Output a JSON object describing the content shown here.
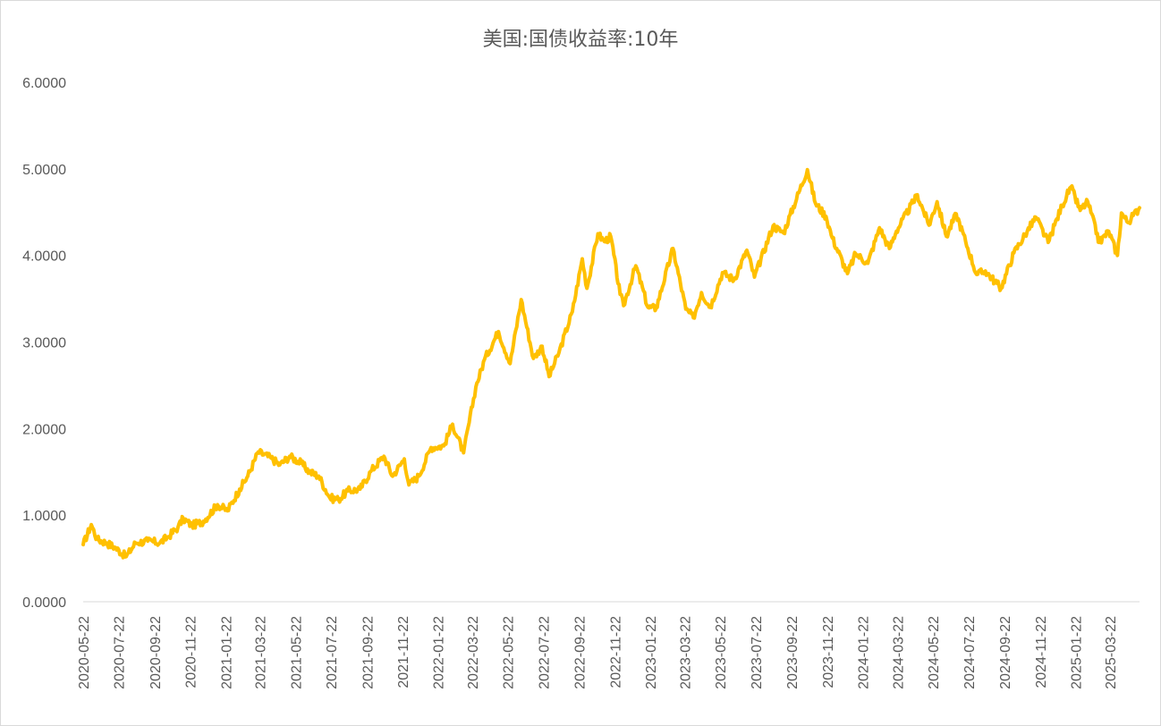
{
  "chart_data": {
    "type": "line",
    "title": "美国:国债收益率:10年",
    "xlabel": "",
    "ylabel": "",
    "ylim": [
      0,
      6
    ],
    "x_range": [
      "2020-05-22",
      "2025-05-12"
    ],
    "y_tick_labels": [
      "0.0000",
      "1.0000",
      "2.0000",
      "3.0000",
      "4.0000",
      "5.0000",
      "6.0000"
    ],
    "x_tick_labels": [
      "2020-05-22",
      "2020-07-22",
      "2020-09-22",
      "2020-11-22",
      "2021-01-22",
      "2021-03-22",
      "2021-05-22",
      "2021-07-22",
      "2021-09-22",
      "2021-11-22",
      "2022-01-22",
      "2022-03-22",
      "2022-05-22",
      "2022-07-22",
      "2022-09-22",
      "2022-11-22",
      "2023-01-22",
      "2023-03-22",
      "2023-05-22",
      "2023-07-22",
      "2023-09-22",
      "2023-11-22",
      "2024-01-22",
      "2024-03-22",
      "2024-05-22",
      "2024-07-22",
      "2024-09-22",
      "2024-11-22",
      "2025-01-22",
      "2025-03-22"
    ],
    "grid": false,
    "series": [
      {
        "color": "#FFC000",
        "points": [
          [
            "2020-05-22",
            0.66
          ],
          [
            "2020-06-05",
            0.89
          ],
          [
            "2020-06-15",
            0.72
          ],
          [
            "2020-07-01",
            0.68
          ],
          [
            "2020-07-15",
            0.63
          ],
          [
            "2020-08-04",
            0.52
          ],
          [
            "2020-08-20",
            0.68
          ],
          [
            "2020-09-10",
            0.7
          ],
          [
            "2020-10-01",
            0.68
          ],
          [
            "2020-10-15",
            0.75
          ],
          [
            "2020-11-01",
            0.86
          ],
          [
            "2020-11-10",
            0.96
          ],
          [
            "2020-11-25",
            0.88
          ],
          [
            "2020-12-15",
            0.93
          ],
          [
            "2021-01-08",
            1.12
          ],
          [
            "2021-01-25",
            1.05
          ],
          [
            "2021-02-15",
            1.3
          ],
          [
            "2021-03-01",
            1.45
          ],
          [
            "2021-03-19",
            1.73
          ],
          [
            "2021-04-10",
            1.66
          ],
          [
            "2021-04-25",
            1.58
          ],
          [
            "2021-05-12",
            1.68
          ],
          [
            "2021-06-01",
            1.6
          ],
          [
            "2021-06-15",
            1.5
          ],
          [
            "2021-07-01",
            1.45
          ],
          [
            "2021-07-20",
            1.2
          ],
          [
            "2021-08-04",
            1.18
          ],
          [
            "2021-08-20",
            1.28
          ],
          [
            "2021-09-10",
            1.3
          ],
          [
            "2021-09-30",
            1.52
          ],
          [
            "2021-10-21",
            1.68
          ],
          [
            "2021-11-05",
            1.45
          ],
          [
            "2021-11-25",
            1.65
          ],
          [
            "2021-12-03",
            1.35
          ],
          [
            "2021-12-20",
            1.45
          ],
          [
            "2022-01-10",
            1.78
          ],
          [
            "2022-02-01",
            1.8
          ],
          [
            "2022-02-16",
            2.05
          ],
          [
            "2022-03-07",
            1.72
          ],
          [
            "2022-03-28",
            2.48
          ],
          [
            "2022-04-12",
            2.8
          ],
          [
            "2022-05-06",
            3.12
          ],
          [
            "2022-05-26",
            2.75
          ],
          [
            "2022-06-14",
            3.49
          ],
          [
            "2022-07-05",
            2.81
          ],
          [
            "2022-07-20",
            2.95
          ],
          [
            "2022-08-01",
            2.6
          ],
          [
            "2022-08-18",
            2.88
          ],
          [
            "2022-09-10",
            3.35
          ],
          [
            "2022-09-27",
            3.96
          ],
          [
            "2022-10-05",
            3.62
          ],
          [
            "2022-10-24",
            4.25
          ],
          [
            "2022-11-04",
            4.16
          ],
          [
            "2022-11-15",
            4.22
          ],
          [
            "2022-12-01",
            3.55
          ],
          [
            "2022-12-07",
            3.42
          ],
          [
            "2022-12-28",
            3.88
          ],
          [
            "2023-01-18",
            3.4
          ],
          [
            "2023-02-01",
            3.39
          ],
          [
            "2023-03-02",
            4.08
          ],
          [
            "2023-03-24",
            3.38
          ],
          [
            "2023-04-06",
            3.28
          ],
          [
            "2023-04-20",
            3.57
          ],
          [
            "2023-05-05",
            3.4
          ],
          [
            "2023-05-26",
            3.8
          ],
          [
            "2023-06-15",
            3.72
          ],
          [
            "2023-07-07",
            4.06
          ],
          [
            "2023-07-20",
            3.75
          ],
          [
            "2023-08-21",
            4.34
          ],
          [
            "2023-09-08",
            4.26
          ],
          [
            "2023-10-19",
            4.99
          ],
          [
            "2023-11-02",
            4.6
          ],
          [
            "2023-11-20",
            4.45
          ],
          [
            "2023-12-01",
            4.2
          ],
          [
            "2023-12-27",
            3.79
          ],
          [
            "2024-01-10",
            4.02
          ],
          [
            "2024-01-31",
            3.91
          ],
          [
            "2024-02-20",
            4.32
          ],
          [
            "2024-03-08",
            4.08
          ],
          [
            "2024-03-20",
            4.28
          ],
          [
            "2024-04-25",
            4.7
          ],
          [
            "2024-05-15",
            4.35
          ],
          [
            "2024-05-29",
            4.62
          ],
          [
            "2024-06-14",
            4.22
          ],
          [
            "2024-07-01",
            4.48
          ],
          [
            "2024-07-17",
            4.16
          ],
          [
            "2024-08-05",
            3.78
          ],
          [
            "2024-08-20",
            3.82
          ],
          [
            "2024-09-16",
            3.62
          ],
          [
            "2024-10-08",
            4.03
          ],
          [
            "2024-10-31",
            4.28
          ],
          [
            "2024-11-15",
            4.44
          ],
          [
            "2024-12-06",
            4.15
          ],
          [
            "2024-12-30",
            4.58
          ],
          [
            "2025-01-14",
            4.79
          ],
          [
            "2025-01-30",
            4.52
          ],
          [
            "2025-02-12",
            4.62
          ],
          [
            "2025-03-04",
            4.15
          ],
          [
            "2025-03-20",
            4.28
          ],
          [
            "2025-04-04",
            4.0
          ],
          [
            "2025-04-11",
            4.49
          ],
          [
            "2025-04-22",
            4.38
          ],
          [
            "2025-05-12",
            4.55
          ]
        ]
      }
    ]
  }
}
